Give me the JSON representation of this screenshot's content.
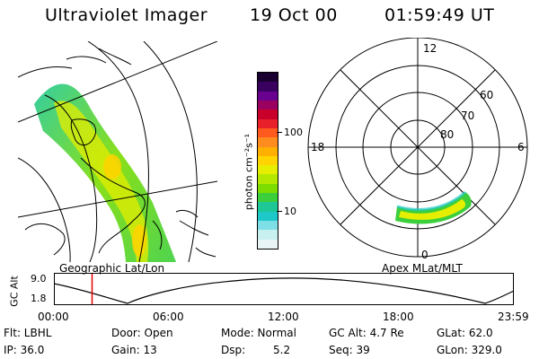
{
  "header": {
    "instrument": "Ultraviolet Imager",
    "date": "19 Oct 00",
    "time": "01:59:49 UT"
  },
  "geo_panel": {
    "caption": "Geographic Lat/Lon"
  },
  "colorbar": {
    "unit_label": "photon cm⁻²s⁻¹",
    "ticks": [
      "100",
      "10"
    ],
    "colors": [
      "#1a0030",
      "#3a0060",
      "#6a0090",
      "#9a0060",
      "#c8002a",
      "#e8202a",
      "#ff5a1e",
      "#ff8c1e",
      "#ffb000",
      "#ffd400",
      "#e6ee00",
      "#b4e800",
      "#7cdc00",
      "#3ccf3c",
      "#1ec896",
      "#1ec8c8",
      "#7ee0e6",
      "#c8f0f0",
      "#e8f4f6"
    ]
  },
  "polar_panel": {
    "caption": "Apex MLat/MLT",
    "mlt_labels": {
      "top": "12",
      "left": "18",
      "right": "6",
      "bottom": "0"
    },
    "lat_labels": [
      "60",
      "70",
      "80"
    ]
  },
  "timeline": {
    "ylabel": "GC Alt",
    "yticks": [
      "9.0",
      "1.8"
    ],
    "xticks": [
      "00:00",
      "06:00",
      "12:00",
      "18:00",
      "23:59"
    ],
    "marker_color": "#e00000",
    "marker_time_fraction": 0.083
  },
  "info": {
    "row1": [
      "Flt: LBHL",
      "Door: Open",
      "Mode: Normal",
      "GC Alt: 4.7 Re",
      "GLat: 62.0"
    ],
    "row2": [
      "IP: 36.0",
      "Gain: 13",
      "Dsp:",
      "5.2",
      "Seq: 39",
      "GLon: 329.0"
    ]
  }
}
